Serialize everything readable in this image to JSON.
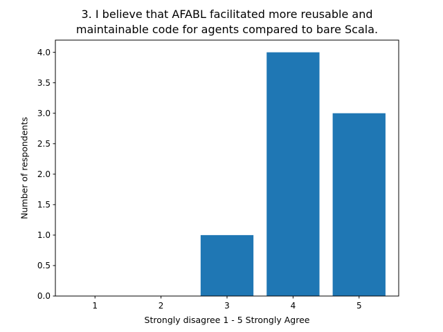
{
  "chart_data": {
    "type": "bar",
    "title_lines": [
      "3. I believe that AFABL facilitated more reusable and",
      "maintainable code for agents compared to bare Scala."
    ],
    "xlabel": "Strongly disagree 1 - 5  Strongly Agree",
    "ylabel": "Number of respondents",
    "categories": [
      "1",
      "2",
      "3",
      "4",
      "5"
    ],
    "values": [
      0,
      0,
      1,
      4,
      3
    ],
    "ylim": [
      0,
      4.2
    ],
    "yticks": [
      "0.0",
      "0.5",
      "1.0",
      "1.5",
      "2.0",
      "2.5",
      "3.0",
      "3.5",
      "4.0"
    ],
    "grid": false,
    "legend": "none",
    "bar_color": "#1f77b4"
  }
}
